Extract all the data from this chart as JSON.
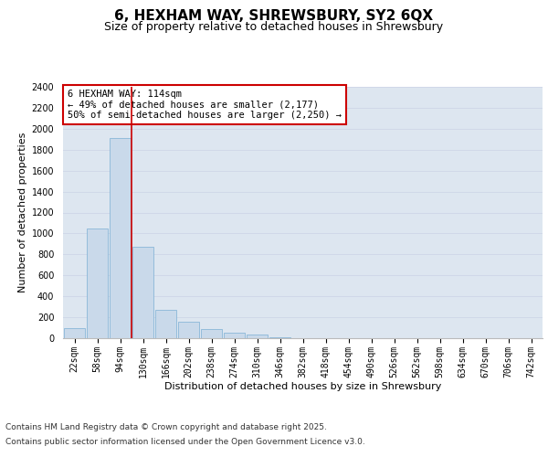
{
  "title_line1": "6, HEXHAM WAY, SHREWSBURY, SY2 6QX",
  "title_line2": "Size of property relative to detached houses in Shrewsbury",
  "xlabel": "Distribution of detached houses by size in Shrewsbury",
  "ylabel": "Number of detached properties",
  "categories": [
    "22sqm",
    "58sqm",
    "94sqm",
    "130sqm",
    "166sqm",
    "202sqm",
    "238sqm",
    "274sqm",
    "310sqm",
    "346sqm",
    "382sqm",
    "418sqm",
    "454sqm",
    "490sqm",
    "526sqm",
    "562sqm",
    "598sqm",
    "634sqm",
    "670sqm",
    "706sqm",
    "742sqm"
  ],
  "values": [
    95,
    1050,
    1910,
    870,
    270,
    155,
    90,
    55,
    35,
    10,
    0,
    0,
    0,
    0,
    0,
    0,
    0,
    0,
    0,
    0,
    0
  ],
  "bar_color": "#c9d9ea",
  "bar_edge_color": "#7bafd4",
  "vline_color": "#cc0000",
  "annotation_text": "6 HEXHAM WAY: 114sqm\n← 49% of detached houses are smaller (2,177)\n50% of semi-detached houses are larger (2,250) →",
  "annotation_box_color": "#ffffff",
  "annotation_box_edge_color": "#cc0000",
  "ylim": [
    0,
    2400
  ],
  "yticks": [
    0,
    200,
    400,
    600,
    800,
    1000,
    1200,
    1400,
    1600,
    1800,
    2000,
    2200,
    2400
  ],
  "grid_color": "#d0d8e8",
  "background_color": "#dde6f0",
  "footer_line1": "Contains HM Land Registry data © Crown copyright and database right 2025.",
  "footer_line2": "Contains public sector information licensed under the Open Government Licence v3.0.",
  "title_fontsize": 11,
  "subtitle_fontsize": 9,
  "axis_label_fontsize": 8,
  "tick_fontsize": 7,
  "annotation_fontsize": 7.5,
  "footer_fontsize": 6.5
}
